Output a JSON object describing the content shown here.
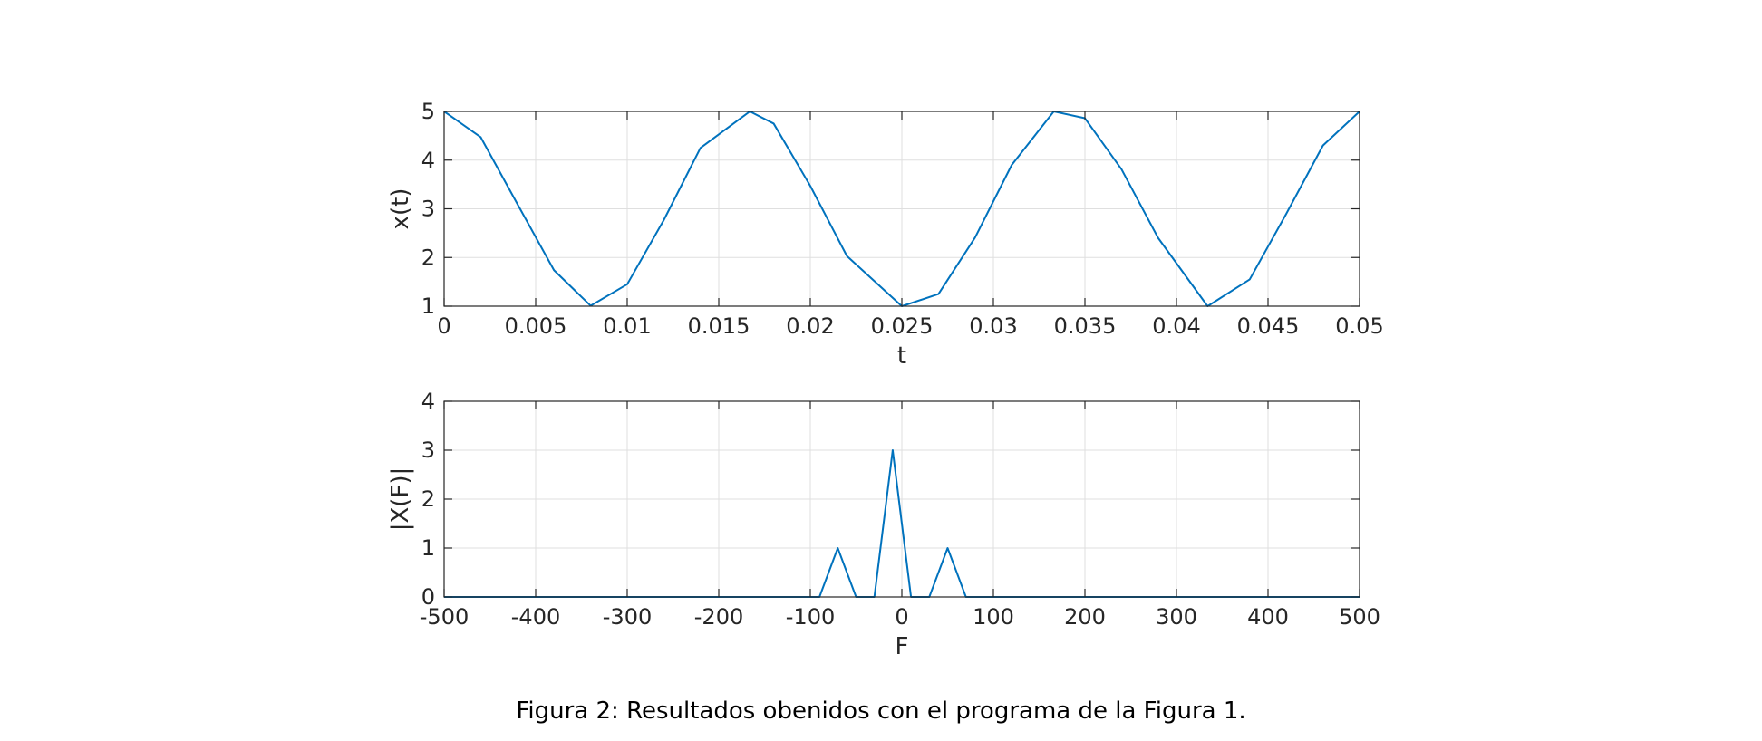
{
  "caption": {
    "prefix": "Figura 2:",
    "text": "Resultados obenidos con el programa de la Figura 1."
  },
  "colors": {
    "line": "#0072BD",
    "axis": "#262626",
    "grid": "#dfdfdf"
  },
  "chart_data": [
    {
      "type": "line",
      "xlabel": "t",
      "ylabel": "x(t)",
      "xlim": [
        0,
        0.05
      ],
      "ylim": [
        1,
        5
      ],
      "xticks": [
        0,
        0.005,
        0.01,
        0.015,
        0.02,
        0.025,
        0.03,
        0.035,
        0.04,
        0.045,
        0.05
      ],
      "xtick_labels": [
        "0",
        "0.005",
        "0.01",
        "0.015",
        "0.02",
        "0.025",
        "0.03",
        "0.035",
        "0.04",
        "0.045",
        "0.05"
      ],
      "yticks": [
        1,
        2,
        3,
        4,
        5
      ],
      "ytick_labels": [
        "1",
        "2",
        "3",
        "4",
        "5"
      ],
      "grid": true,
      "series": [
        {
          "x": [
            0,
            0.002,
            0.004,
            0.006,
            0.008,
            0.01,
            0.012,
            0.014,
            0.0167,
            0.018,
            0.02,
            0.022,
            0.025,
            0.027,
            0.029,
            0.031,
            0.0333,
            0.035,
            0.037,
            0.039,
            0.0417,
            0.044,
            0.046,
            0.048,
            0.05
          ],
          "values": [
            5,
            4.47,
            3.1,
            1.74,
            1.01,
            1.45,
            2.77,
            4.25,
            5,
            4.75,
            3.47,
            2.03,
            1,
            1.25,
            2.41,
            3.9,
            5,
            4.86,
            3.81,
            2.4,
            1,
            1.55,
            2.9,
            4.3,
            5
          ]
        }
      ]
    },
    {
      "type": "line",
      "xlabel": "F",
      "ylabel": "|X(F)|",
      "xlim": [
        -500,
        500
      ],
      "ylim": [
        0,
        4
      ],
      "xticks": [
        -500,
        -400,
        -300,
        -200,
        -100,
        0,
        100,
        200,
        300,
        400,
        500
      ],
      "xtick_labels": [
        "-500",
        "-400",
        "-300",
        "-200",
        "-100",
        "0",
        "100",
        "200",
        "300",
        "400",
        "500"
      ],
      "yticks": [
        0,
        1,
        2,
        3,
        4
      ],
      "ytick_labels": [
        "0",
        "1",
        "2",
        "3",
        "4"
      ],
      "grid": true,
      "series": [
        {
          "x": [
            -500,
            -90,
            -70,
            -50,
            -30,
            -10,
            10,
            30,
            50,
            70,
            500
          ],
          "values": [
            0,
            0,
            1,
            0,
            0,
            3,
            0,
            0,
            1,
            0,
            0
          ]
        }
      ]
    }
  ]
}
